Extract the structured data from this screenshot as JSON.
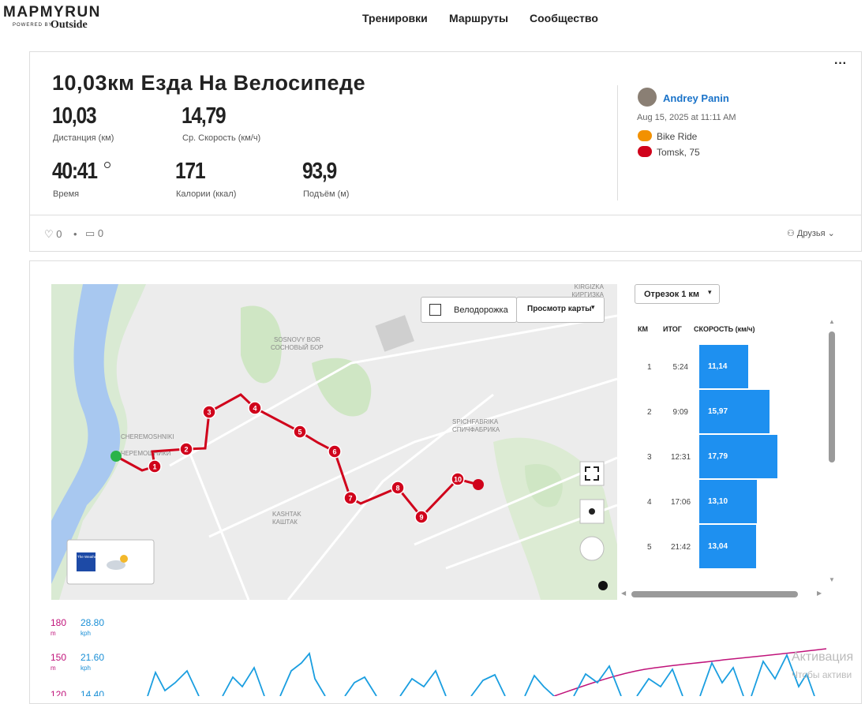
{
  "header": {
    "logo": "MAPMYRUN",
    "powered_by": "POWERED BY",
    "brand": "Outside",
    "nav": [
      "Тренировки",
      "Маршруты",
      "Сообщество"
    ]
  },
  "workout": {
    "title": "10,03км Езда На Велосипеде",
    "stats": [
      {
        "value": "10,03",
        "label": "Дистанция (км)"
      },
      {
        "value": "14,79",
        "label": "Ср. Скорость (км/ч)"
      },
      {
        "value": "40:41",
        "label": "Время"
      },
      {
        "value": "171",
        "label": "Калории (ккал)"
      },
      {
        "value": "93,9",
        "label": "Подъём (м)"
      }
    ],
    "user": "Andrey Panin",
    "date": "Aug 15, 2025 at 11:11 AM",
    "activity": "Bike Ride",
    "location": "Tomsk, 75",
    "likes": "0",
    "comments": "0",
    "privacy": "Друзья"
  },
  "map": {
    "bike_lanes": "Велодорожка",
    "map_view": "Просмотр карты",
    "labels": [
      "KIRGIZKA",
      "КИРГИЗКА",
      "SOSNOVY BOR",
      "СОСНОВЫЙ БОР",
      "CHEREMOSHNIKI",
      "ЧЕРЕМОШНИКИ",
      "SPICHFABRIKA",
      "СПИЧФАБРИКА",
      "KASHTAK",
      "КАШТАК"
    ],
    "markers": [
      "1",
      "2",
      "3",
      "4",
      "5",
      "6",
      "7",
      "8",
      "9",
      "10"
    ],
    "weather": "The Weather Channel"
  },
  "splits": {
    "selector": "Отрезок 1 км",
    "headers": [
      "КМ",
      "ИТОГ",
      "СКОРОСТЬ (км/ч)"
    ],
    "rows": [
      {
        "km": "1",
        "total": "5:24",
        "speed": 11.14,
        "speed_label": "11,14"
      },
      {
        "km": "2",
        "total": "9:09",
        "speed": 15.97,
        "speed_label": "15,97"
      },
      {
        "km": "3",
        "total": "12:31",
        "speed": 17.79,
        "speed_label": "17,79"
      },
      {
        "km": "4",
        "total": "17:06",
        "speed": 13.1,
        "speed_label": "13,10"
      },
      {
        "km": "5",
        "total": "21:42",
        "speed": 13.04,
        "speed_label": "13,04"
      }
    ]
  },
  "chart": {
    "axes": [
      {
        "left": "180",
        "left_unit": "m",
        "right": "28.80",
        "right_unit": "kph"
      },
      {
        "left": "150",
        "left_unit": "m",
        "right": "21.60",
        "right_unit": "kph"
      },
      {
        "left": "120",
        "right": "14.40"
      }
    ]
  },
  "watermark": [
    "Активация",
    "Чтобы активи"
  ]
}
